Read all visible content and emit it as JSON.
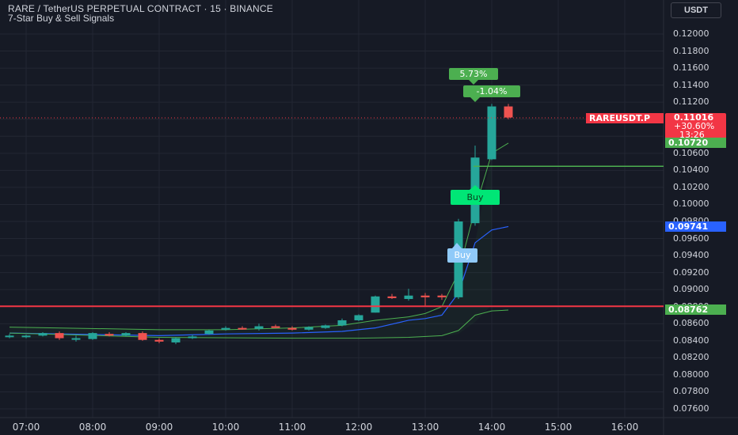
{
  "header": {
    "symbol_line": "RARE / TetherUS PERPETUAL CONTRACT · 15 · BINANCE",
    "indicator": "7-Star Buy & Sell Signals"
  },
  "currency_button": "USDT",
  "price_axis": {
    "ticks": [
      "0.12000",
      "0.11800",
      "0.11600",
      "0.11400",
      "0.11200",
      "0.11000",
      "0.10800",
      "0.10600",
      "0.10400",
      "0.10200",
      "0.10000",
      "0.09800",
      "0.09600",
      "0.09400",
      "0.09200",
      "0.09000",
      "0.08800",
      "0.08600",
      "0.08400",
      "0.08200",
      "0.08000",
      "0.07800",
      "0.07600"
    ]
  },
  "time_axis": {
    "ticks": [
      "07:00",
      "08:00",
      "09:00",
      "10:00",
      "11:00",
      "12:00",
      "13:00",
      "14:00",
      "15:00",
      "16:00"
    ]
  },
  "labels": {
    "symbol_tag": "RAREUSDT.P",
    "last_price": "0.11016",
    "change_pct": "+30.60%",
    "countdown": "13:26",
    "green_line_price": "0.10720",
    "blue_line_price": "0.09741",
    "red_line_price": "0.08762"
  },
  "signals": {
    "buy_1": "Buy",
    "buy_2": "Buy",
    "pct_up": "5.73%",
    "pct_down": "-1.04%"
  },
  "colors": {
    "background": "#161a25",
    "up": "#26a69a",
    "down": "#ef5350",
    "green_signal": "#4caf50",
    "buy_green": "#00e676",
    "buy_blue": "#90caf9",
    "blue_line": "#2962ff",
    "red_level": "#f23645",
    "green_level": "#4caf50"
  },
  "chart_data": {
    "type": "candlestick",
    "interval": "15",
    "y_range": [
      0.075,
      0.1215
    ],
    "candles": [
      {
        "t": "06:45",
        "o": 0.0845,
        "h": 0.0848,
        "l": 0.0843,
        "c": 0.0846
      },
      {
        "t": "07:00",
        "o": 0.0845,
        "h": 0.0847,
        "l": 0.0843,
        "c": 0.0846
      },
      {
        "t": "07:15",
        "o": 0.0846,
        "h": 0.085,
        "l": 0.0845,
        "c": 0.0849
      },
      {
        "t": "07:30",
        "o": 0.0849,
        "h": 0.0851,
        "l": 0.0841,
        "c": 0.0843
      },
      {
        "t": "07:45",
        "o": 0.0843,
        "h": 0.0846,
        "l": 0.0839,
        "c": 0.0843
      },
      {
        "t": "08:00",
        "o": 0.0842,
        "h": 0.085,
        "l": 0.0841,
        "c": 0.0849
      },
      {
        "t": "08:15",
        "o": 0.0848,
        "h": 0.085,
        "l": 0.0845,
        "c": 0.0846
      },
      {
        "t": "08:30",
        "o": 0.0846,
        "h": 0.085,
        "l": 0.0845,
        "c": 0.0849
      },
      {
        "t": "08:45",
        "o": 0.0849,
        "h": 0.0851,
        "l": 0.084,
        "c": 0.0841
      },
      {
        "t": "09:00",
        "o": 0.0841,
        "h": 0.0843,
        "l": 0.0837,
        "c": 0.0839
      },
      {
        "t": "09:15",
        "o": 0.0838,
        "h": 0.0844,
        "l": 0.0836,
        "c": 0.0843
      },
      {
        "t": "09:30",
        "o": 0.0843,
        "h": 0.0847,
        "l": 0.0842,
        "c": 0.0845
      },
      {
        "t": "09:45",
        "o": 0.0848,
        "h": 0.0853,
        "l": 0.0847,
        "c": 0.0852
      },
      {
        "t": "10:00",
        "o": 0.0853,
        "h": 0.0857,
        "l": 0.0852,
        "c": 0.0855
      },
      {
        "t": "10:15",
        "o": 0.0855,
        "h": 0.0857,
        "l": 0.0853,
        "c": 0.0854
      },
      {
        "t": "10:30",
        "o": 0.0854,
        "h": 0.086,
        "l": 0.0852,
        "c": 0.0857
      },
      {
        "t": "10:45",
        "o": 0.0857,
        "h": 0.0859,
        "l": 0.0855,
        "c": 0.0855
      },
      {
        "t": "11:00",
        "o": 0.0855,
        "h": 0.0857,
        "l": 0.0852,
        "c": 0.0853
      },
      {
        "t": "11:15",
        "o": 0.0853,
        "h": 0.0857,
        "l": 0.0852,
        "c": 0.0856
      },
      {
        "t": "11:30",
        "o": 0.0855,
        "h": 0.0859,
        "l": 0.0854,
        "c": 0.0858
      },
      {
        "t": "11:45",
        "o": 0.0858,
        "h": 0.0866,
        "l": 0.0857,
        "c": 0.0864
      },
      {
        "t": "12:00",
        "o": 0.0864,
        "h": 0.0871,
        "l": 0.0863,
        "c": 0.087
      },
      {
        "t": "12:15",
        "o": 0.0873,
        "h": 0.0893,
        "l": 0.0873,
        "c": 0.0892
      },
      {
        "t": "12:30",
        "o": 0.0892,
        "h": 0.0895,
        "l": 0.0889,
        "c": 0.089
      },
      {
        "t": "12:45",
        "o": 0.0889,
        "h": 0.0901,
        "l": 0.0887,
        "c": 0.0893
      },
      {
        "t": "13:00",
        "o": 0.0893,
        "h": 0.0896,
        "l": 0.088,
        "c": 0.0891
      },
      {
        "t": "13:15",
        "o": 0.0893,
        "h": 0.0895,
        "l": 0.0888,
        "c": 0.0891
      },
      {
        "t": "13:30",
        "o": 0.0891,
        "h": 0.0983,
        "l": 0.0889,
        "c": 0.098
      },
      {
        "t": "13:45",
        "o": 0.0978,
        "h": 0.1069,
        "l": 0.0975,
        "c": 0.1055
      },
      {
        "t": "14:00",
        "o": 0.1053,
        "h": 0.1118,
        "l": 0.1052,
        "c": 0.1115
      },
      {
        "t": "14:15",
        "o": 0.1115,
        "h": 0.1118,
        "l": 0.11,
        "c": 0.1102
      }
    ]
  }
}
